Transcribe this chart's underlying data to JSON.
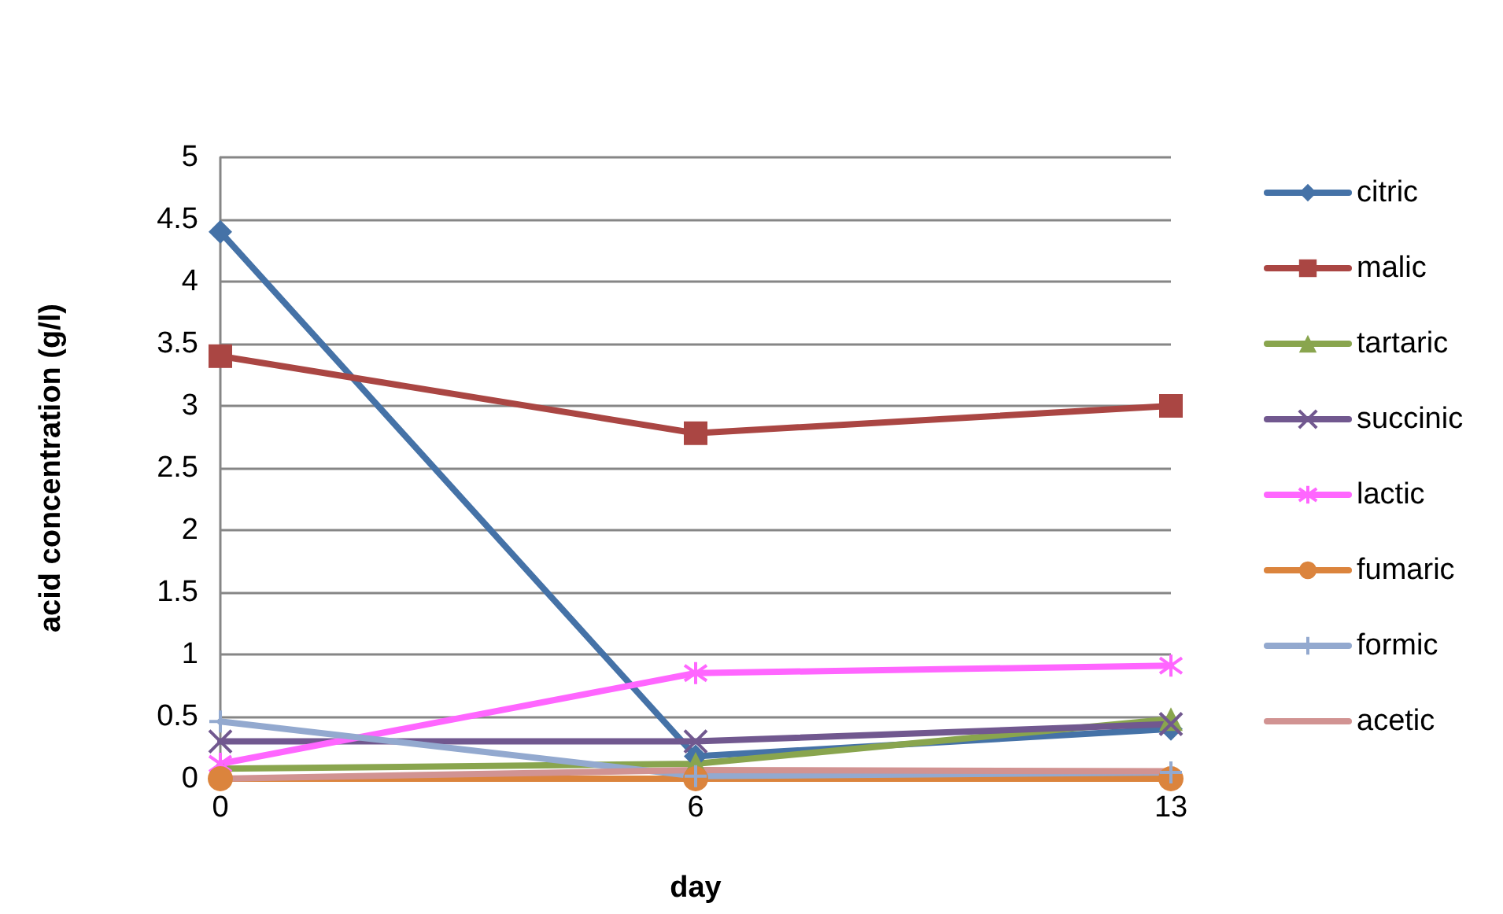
{
  "chart_data": {
    "type": "line",
    "xlabel": "day",
    "ylabel": "acid concentration (g/l)",
    "categories": [
      "0",
      "6",
      "13"
    ],
    "series": [
      {
        "name": "citric",
        "color": "#4572a7",
        "marker": "diamond",
        "values": [
          4.4,
          0.18,
          0.4
        ]
      },
      {
        "name": "malic",
        "color": "#aa4643",
        "marker": "square",
        "values": [
          3.4,
          2.78,
          3.0
        ]
      },
      {
        "name": "tartaric",
        "color": "#89a54e",
        "marker": "triangle",
        "values": [
          0.08,
          0.12,
          0.48
        ]
      },
      {
        "name": "succinic",
        "color": "#71588f",
        "marker": "cross",
        "values": [
          0.3,
          0.3,
          0.44
        ]
      },
      {
        "name": "lactic",
        "color": "#ff66ff",
        "marker": "cross",
        "values": [
          0.12,
          0.85,
          0.91
        ]
      },
      {
        "name": "fumaric",
        "color": "#db843d",
        "marker": "circle",
        "values": [
          0,
          0,
          0
        ]
      },
      {
        "name": "formic",
        "color": "#93a9cf",
        "marker": "cross",
        "values": [
          0.46,
          0.02,
          0.05
        ]
      },
      {
        "name": "acetic",
        "color": "#d19392",
        "marker": "none",
        "values": [
          0,
          0.07,
          0.06
        ]
      }
    ],
    "ylim": [
      0,
      5
    ],
    "yticks": [
      0,
      0.5,
      1,
      1.5,
      2,
      2.5,
      3,
      3.5,
      4,
      4.5,
      5
    ],
    "grid": "y",
    "legend": "right",
    "line_style": "solid"
  }
}
